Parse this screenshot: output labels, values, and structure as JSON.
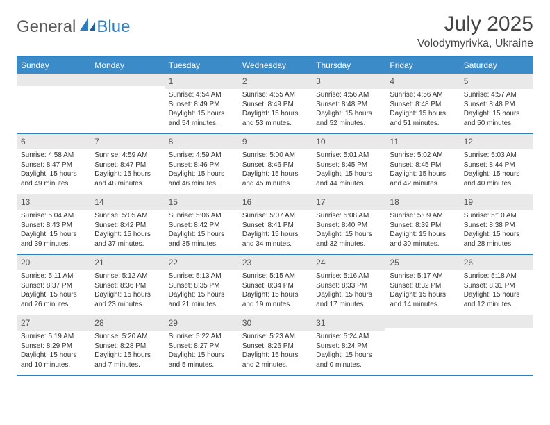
{
  "brand": {
    "text1": "General",
    "text2": "Blue"
  },
  "title": {
    "month": "July 2025",
    "location": "Volodymyrivka, Ukraine"
  },
  "colors": {
    "header_bg": "#3b8bc9",
    "border": "#2f7fbf",
    "daynum_bg": "#e9e9e9",
    "text": "#333333"
  },
  "weekdays": [
    "Sunday",
    "Monday",
    "Tuesday",
    "Wednesday",
    "Thursday",
    "Friday",
    "Saturday"
  ],
  "weeks": [
    [
      null,
      null,
      {
        "n": "1",
        "sr": "4:54 AM",
        "ss": "8:49 PM",
        "dl": "15 hours and 54 minutes."
      },
      {
        "n": "2",
        "sr": "4:55 AM",
        "ss": "8:49 PM",
        "dl": "15 hours and 53 minutes."
      },
      {
        "n": "3",
        "sr": "4:56 AM",
        "ss": "8:48 PM",
        "dl": "15 hours and 52 minutes."
      },
      {
        "n": "4",
        "sr": "4:56 AM",
        "ss": "8:48 PM",
        "dl": "15 hours and 51 minutes."
      },
      {
        "n": "5",
        "sr": "4:57 AM",
        "ss": "8:48 PM",
        "dl": "15 hours and 50 minutes."
      }
    ],
    [
      {
        "n": "6",
        "sr": "4:58 AM",
        "ss": "8:47 PM",
        "dl": "15 hours and 49 minutes."
      },
      {
        "n": "7",
        "sr": "4:59 AM",
        "ss": "8:47 PM",
        "dl": "15 hours and 48 minutes."
      },
      {
        "n": "8",
        "sr": "4:59 AM",
        "ss": "8:46 PM",
        "dl": "15 hours and 46 minutes."
      },
      {
        "n": "9",
        "sr": "5:00 AM",
        "ss": "8:46 PM",
        "dl": "15 hours and 45 minutes."
      },
      {
        "n": "10",
        "sr": "5:01 AM",
        "ss": "8:45 PM",
        "dl": "15 hours and 44 minutes."
      },
      {
        "n": "11",
        "sr": "5:02 AM",
        "ss": "8:45 PM",
        "dl": "15 hours and 42 minutes."
      },
      {
        "n": "12",
        "sr": "5:03 AM",
        "ss": "8:44 PM",
        "dl": "15 hours and 40 minutes."
      }
    ],
    [
      {
        "n": "13",
        "sr": "5:04 AM",
        "ss": "8:43 PM",
        "dl": "15 hours and 39 minutes."
      },
      {
        "n": "14",
        "sr": "5:05 AM",
        "ss": "8:42 PM",
        "dl": "15 hours and 37 minutes."
      },
      {
        "n": "15",
        "sr": "5:06 AM",
        "ss": "8:42 PM",
        "dl": "15 hours and 35 minutes."
      },
      {
        "n": "16",
        "sr": "5:07 AM",
        "ss": "8:41 PM",
        "dl": "15 hours and 34 minutes."
      },
      {
        "n": "17",
        "sr": "5:08 AM",
        "ss": "8:40 PM",
        "dl": "15 hours and 32 minutes."
      },
      {
        "n": "18",
        "sr": "5:09 AM",
        "ss": "8:39 PM",
        "dl": "15 hours and 30 minutes."
      },
      {
        "n": "19",
        "sr": "5:10 AM",
        "ss": "8:38 PM",
        "dl": "15 hours and 28 minutes."
      }
    ],
    [
      {
        "n": "20",
        "sr": "5:11 AM",
        "ss": "8:37 PM",
        "dl": "15 hours and 26 minutes."
      },
      {
        "n": "21",
        "sr": "5:12 AM",
        "ss": "8:36 PM",
        "dl": "15 hours and 23 minutes."
      },
      {
        "n": "22",
        "sr": "5:13 AM",
        "ss": "8:35 PM",
        "dl": "15 hours and 21 minutes."
      },
      {
        "n": "23",
        "sr": "5:15 AM",
        "ss": "8:34 PM",
        "dl": "15 hours and 19 minutes."
      },
      {
        "n": "24",
        "sr": "5:16 AM",
        "ss": "8:33 PM",
        "dl": "15 hours and 17 minutes."
      },
      {
        "n": "25",
        "sr": "5:17 AM",
        "ss": "8:32 PM",
        "dl": "15 hours and 14 minutes."
      },
      {
        "n": "26",
        "sr": "5:18 AM",
        "ss": "8:31 PM",
        "dl": "15 hours and 12 minutes."
      }
    ],
    [
      {
        "n": "27",
        "sr": "5:19 AM",
        "ss": "8:29 PM",
        "dl": "15 hours and 10 minutes."
      },
      {
        "n": "28",
        "sr": "5:20 AM",
        "ss": "8:28 PM",
        "dl": "15 hours and 7 minutes."
      },
      {
        "n": "29",
        "sr": "5:22 AM",
        "ss": "8:27 PM",
        "dl": "15 hours and 5 minutes."
      },
      {
        "n": "30",
        "sr": "5:23 AM",
        "ss": "8:26 PM",
        "dl": "15 hours and 2 minutes."
      },
      {
        "n": "31",
        "sr": "5:24 AM",
        "ss": "8:24 PM",
        "dl": "15 hours and 0 minutes."
      },
      null,
      null
    ]
  ],
  "labels": {
    "sunrise": "Sunrise: ",
    "sunset": "Sunset: ",
    "daylight": "Daylight: "
  }
}
